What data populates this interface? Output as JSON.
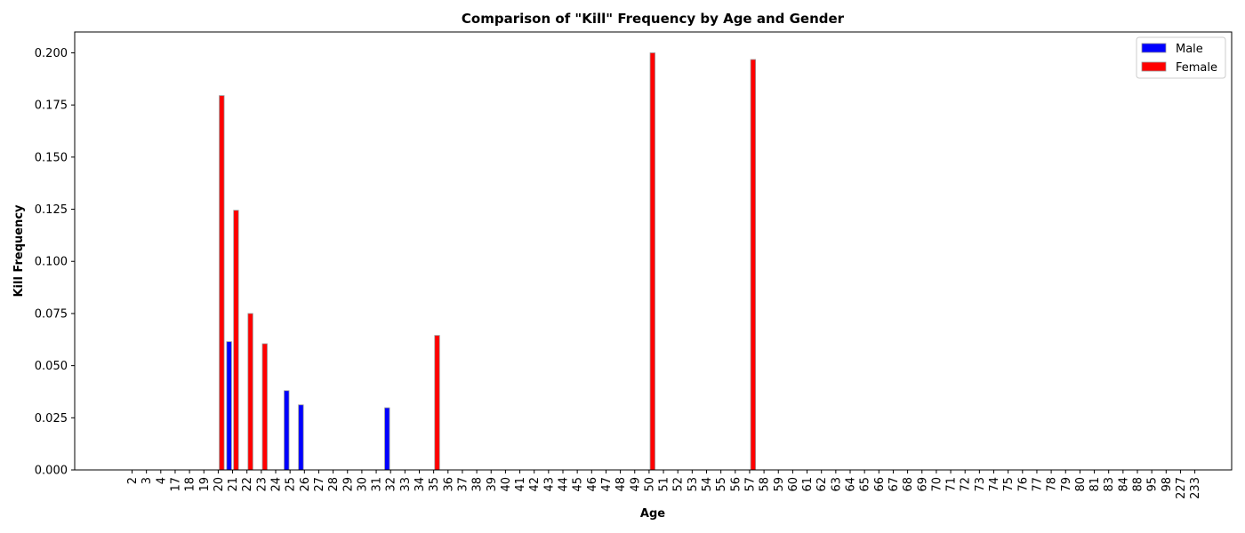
{
  "chart_data": {
    "type": "bar",
    "title": "Comparison of \"Kill\" Frequency by Age and Gender",
    "xlabel": "Age",
    "ylabel": "Kill Frequency",
    "ylim": [
      0,
      0.21
    ],
    "yticks": [
      0.0,
      0.025,
      0.05,
      0.075,
      0.1,
      0.125,
      0.15,
      0.175,
      0.2
    ],
    "ytick_labels": [
      "0.000",
      "0.025",
      "0.050",
      "0.075",
      "0.100",
      "0.125",
      "0.150",
      "0.175",
      "0.200"
    ],
    "grid": false,
    "legend_position": "top-right",
    "categories": [
      "2",
      "3",
      "4",
      "17",
      "18",
      "19",
      "20",
      "21",
      "22",
      "23",
      "24",
      "25",
      "26",
      "27",
      "28",
      "29",
      "30",
      "31",
      "32",
      "33",
      "34",
      "35",
      "36",
      "37",
      "38",
      "39",
      "40",
      "41",
      "42",
      "43",
      "44",
      "45",
      "46",
      "47",
      "48",
      "49",
      "50",
      "51",
      "52",
      "53",
      "54",
      "55",
      "56",
      "57",
      "58",
      "59",
      "60",
      "61",
      "62",
      "63",
      "64",
      "65",
      "66",
      "67",
      "68",
      "69",
      "70",
      "71",
      "72",
      "73",
      "74",
      "75",
      "76",
      "77",
      "78",
      "79",
      "80",
      "81",
      "83",
      "84",
      "88",
      "95",
      "98",
      "227",
      "233"
    ],
    "series": [
      {
        "name": "Male",
        "color": "#0000ff",
        "values": [
          0,
          0,
          0,
          0,
          0,
          0,
          0,
          0.0615,
          0,
          0,
          0,
          0.038,
          0.0312,
          0,
          0,
          0,
          0,
          0,
          0.0298,
          0,
          0,
          0,
          0,
          0,
          0,
          0,
          0,
          0,
          0,
          0,
          0,
          0,
          0,
          0,
          0,
          0,
          0,
          0,
          0,
          0,
          0,
          0,
          0,
          0,
          0,
          0,
          0,
          0,
          0,
          0,
          0,
          0,
          0,
          0,
          0,
          0,
          0,
          0,
          0,
          0,
          0,
          0,
          0,
          0,
          0,
          0,
          0,
          0,
          0,
          0,
          0,
          0,
          0,
          0,
          0
        ]
      },
      {
        "name": "Female",
        "color": "#ff0000",
        "values": [
          0,
          0,
          0,
          0,
          0,
          0,
          0.1795,
          0.1245,
          0.075,
          0.0605,
          0,
          0,
          0,
          0,
          0,
          0,
          0,
          0,
          0,
          0,
          0,
          0.0645,
          0,
          0,
          0,
          0,
          0,
          0,
          0,
          0,
          0,
          0,
          0,
          0,
          0,
          0,
          0.2,
          0,
          0,
          0,
          0,
          0,
          0,
          0.1968,
          0,
          0,
          0,
          0,
          0,
          0,
          0,
          0,
          0,
          0,
          0,
          0,
          0,
          0,
          0,
          0,
          0,
          0,
          0,
          0,
          0,
          0,
          0,
          0,
          0,
          0,
          0,
          0,
          0,
          0,
          0
        ]
      }
    ]
  }
}
